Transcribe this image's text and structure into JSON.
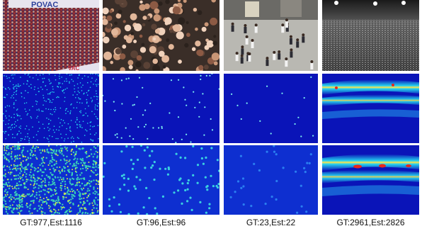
{
  "columns": [
    {
      "caption": "GT:977,Est:1116",
      "banner_text": "POVAC",
      "photo": "stadium-crowd-photo"
    },
    {
      "caption": "GT:96,Est:96",
      "photo": "street-crowd-photo"
    },
    {
      "caption": "GT:23,Est:22",
      "photo": "mall-pedestrians-photo"
    },
    {
      "caption": "GT:2961,Est:2826",
      "photo": "concert-crowd-grayscale-photo"
    }
  ],
  "rows": [
    "input-image",
    "ground-truth-density-map",
    "estimated-density-map"
  ],
  "colors": {
    "map_background": "#0a14b8",
    "map_hot": "#ffe14a",
    "map_mid": "#25d3f0",
    "map_red": "#e8271c"
  }
}
